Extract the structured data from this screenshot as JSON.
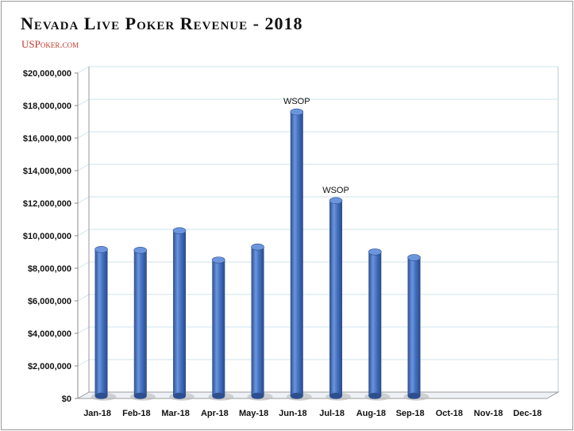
{
  "title": "Nevada Live Poker Revenue - 2018",
  "subtitle": "USPoker.com",
  "colors": {
    "bar": "#4472c4",
    "bar_dark": "#2e4f8f",
    "bar_light": "#6b95dc",
    "grid": "#cfe3ee",
    "subtitle": "#c0392b"
  },
  "chart_data": {
    "type": "bar",
    "categories": [
      "Jan-18",
      "Feb-18",
      "Mar-18",
      "Apr-18",
      "May-18",
      "Jun-18",
      "Jul-18",
      "Aug-18",
      "Sep-18",
      "Oct-18",
      "Nov-18",
      "Dec-18"
    ],
    "values": [
      9000000,
      8950000,
      10150000,
      8350000,
      9150000,
      17450000,
      12000000,
      8850000,
      8500000,
      null,
      null,
      null
    ],
    "ylim": [
      0,
      20000000
    ],
    "yticks": [
      "$0",
      "$2,000,000",
      "$4,000,000",
      "$6,000,000",
      "$8,000,000",
      "$10,000,000",
      "$12,000,000",
      "$14,000,000",
      "$16,000,000",
      "$18,000,000",
      "$20,000,000"
    ],
    "annotations": [
      {
        "category": "Jun-18",
        "text": "WSOP"
      },
      {
        "category": "Jul-18",
        "text": "WSOP"
      }
    ],
    "grid": true,
    "legend": "none",
    "style": "3d-cylinder"
  }
}
